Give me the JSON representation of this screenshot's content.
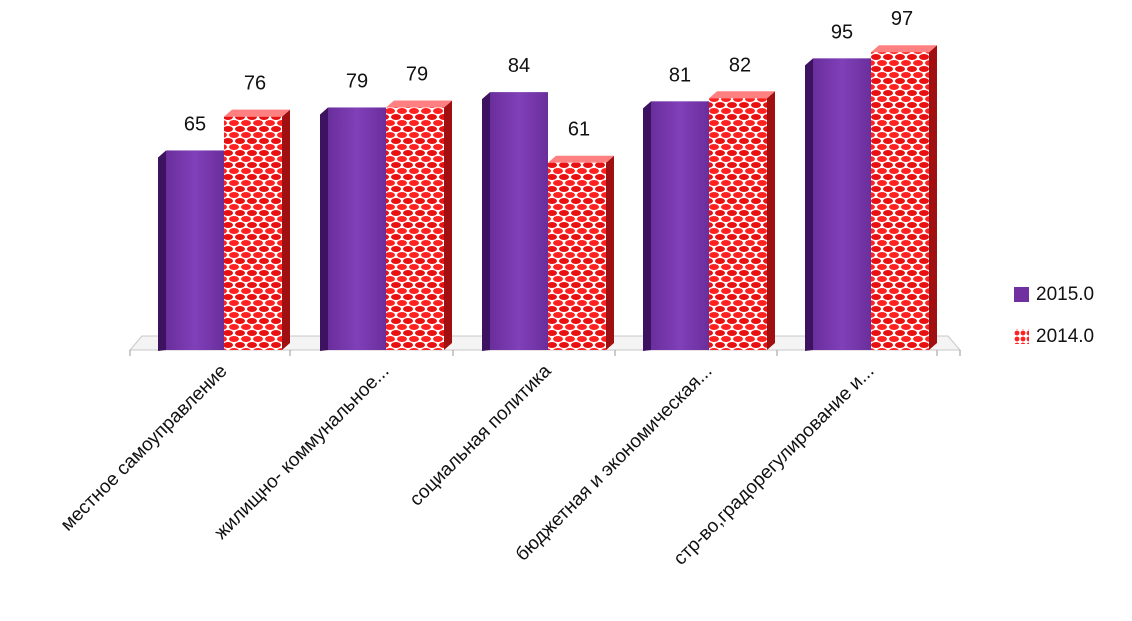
{
  "chart_data": {
    "type": "bar",
    "title": "",
    "xlabel": "",
    "ylabel": "",
    "ylim": [
      0,
      100
    ],
    "grid": false,
    "legend_position": "right",
    "categories": [
      "местное самоуправление",
      "жилищно- коммунальное...",
      "социальная политика",
      "бюджетная и экономическая...",
      "стр-во,градорегулирование и..."
    ],
    "series": [
      {
        "name": "2015.0",
        "values": [
          65,
          79,
          84,
          81,
          95
        ],
        "color": "#7030a0"
      },
      {
        "name": "2014.0",
        "values": [
          76,
          79,
          61,
          82,
          97
        ],
        "color": "#ff2020"
      }
    ]
  }
}
